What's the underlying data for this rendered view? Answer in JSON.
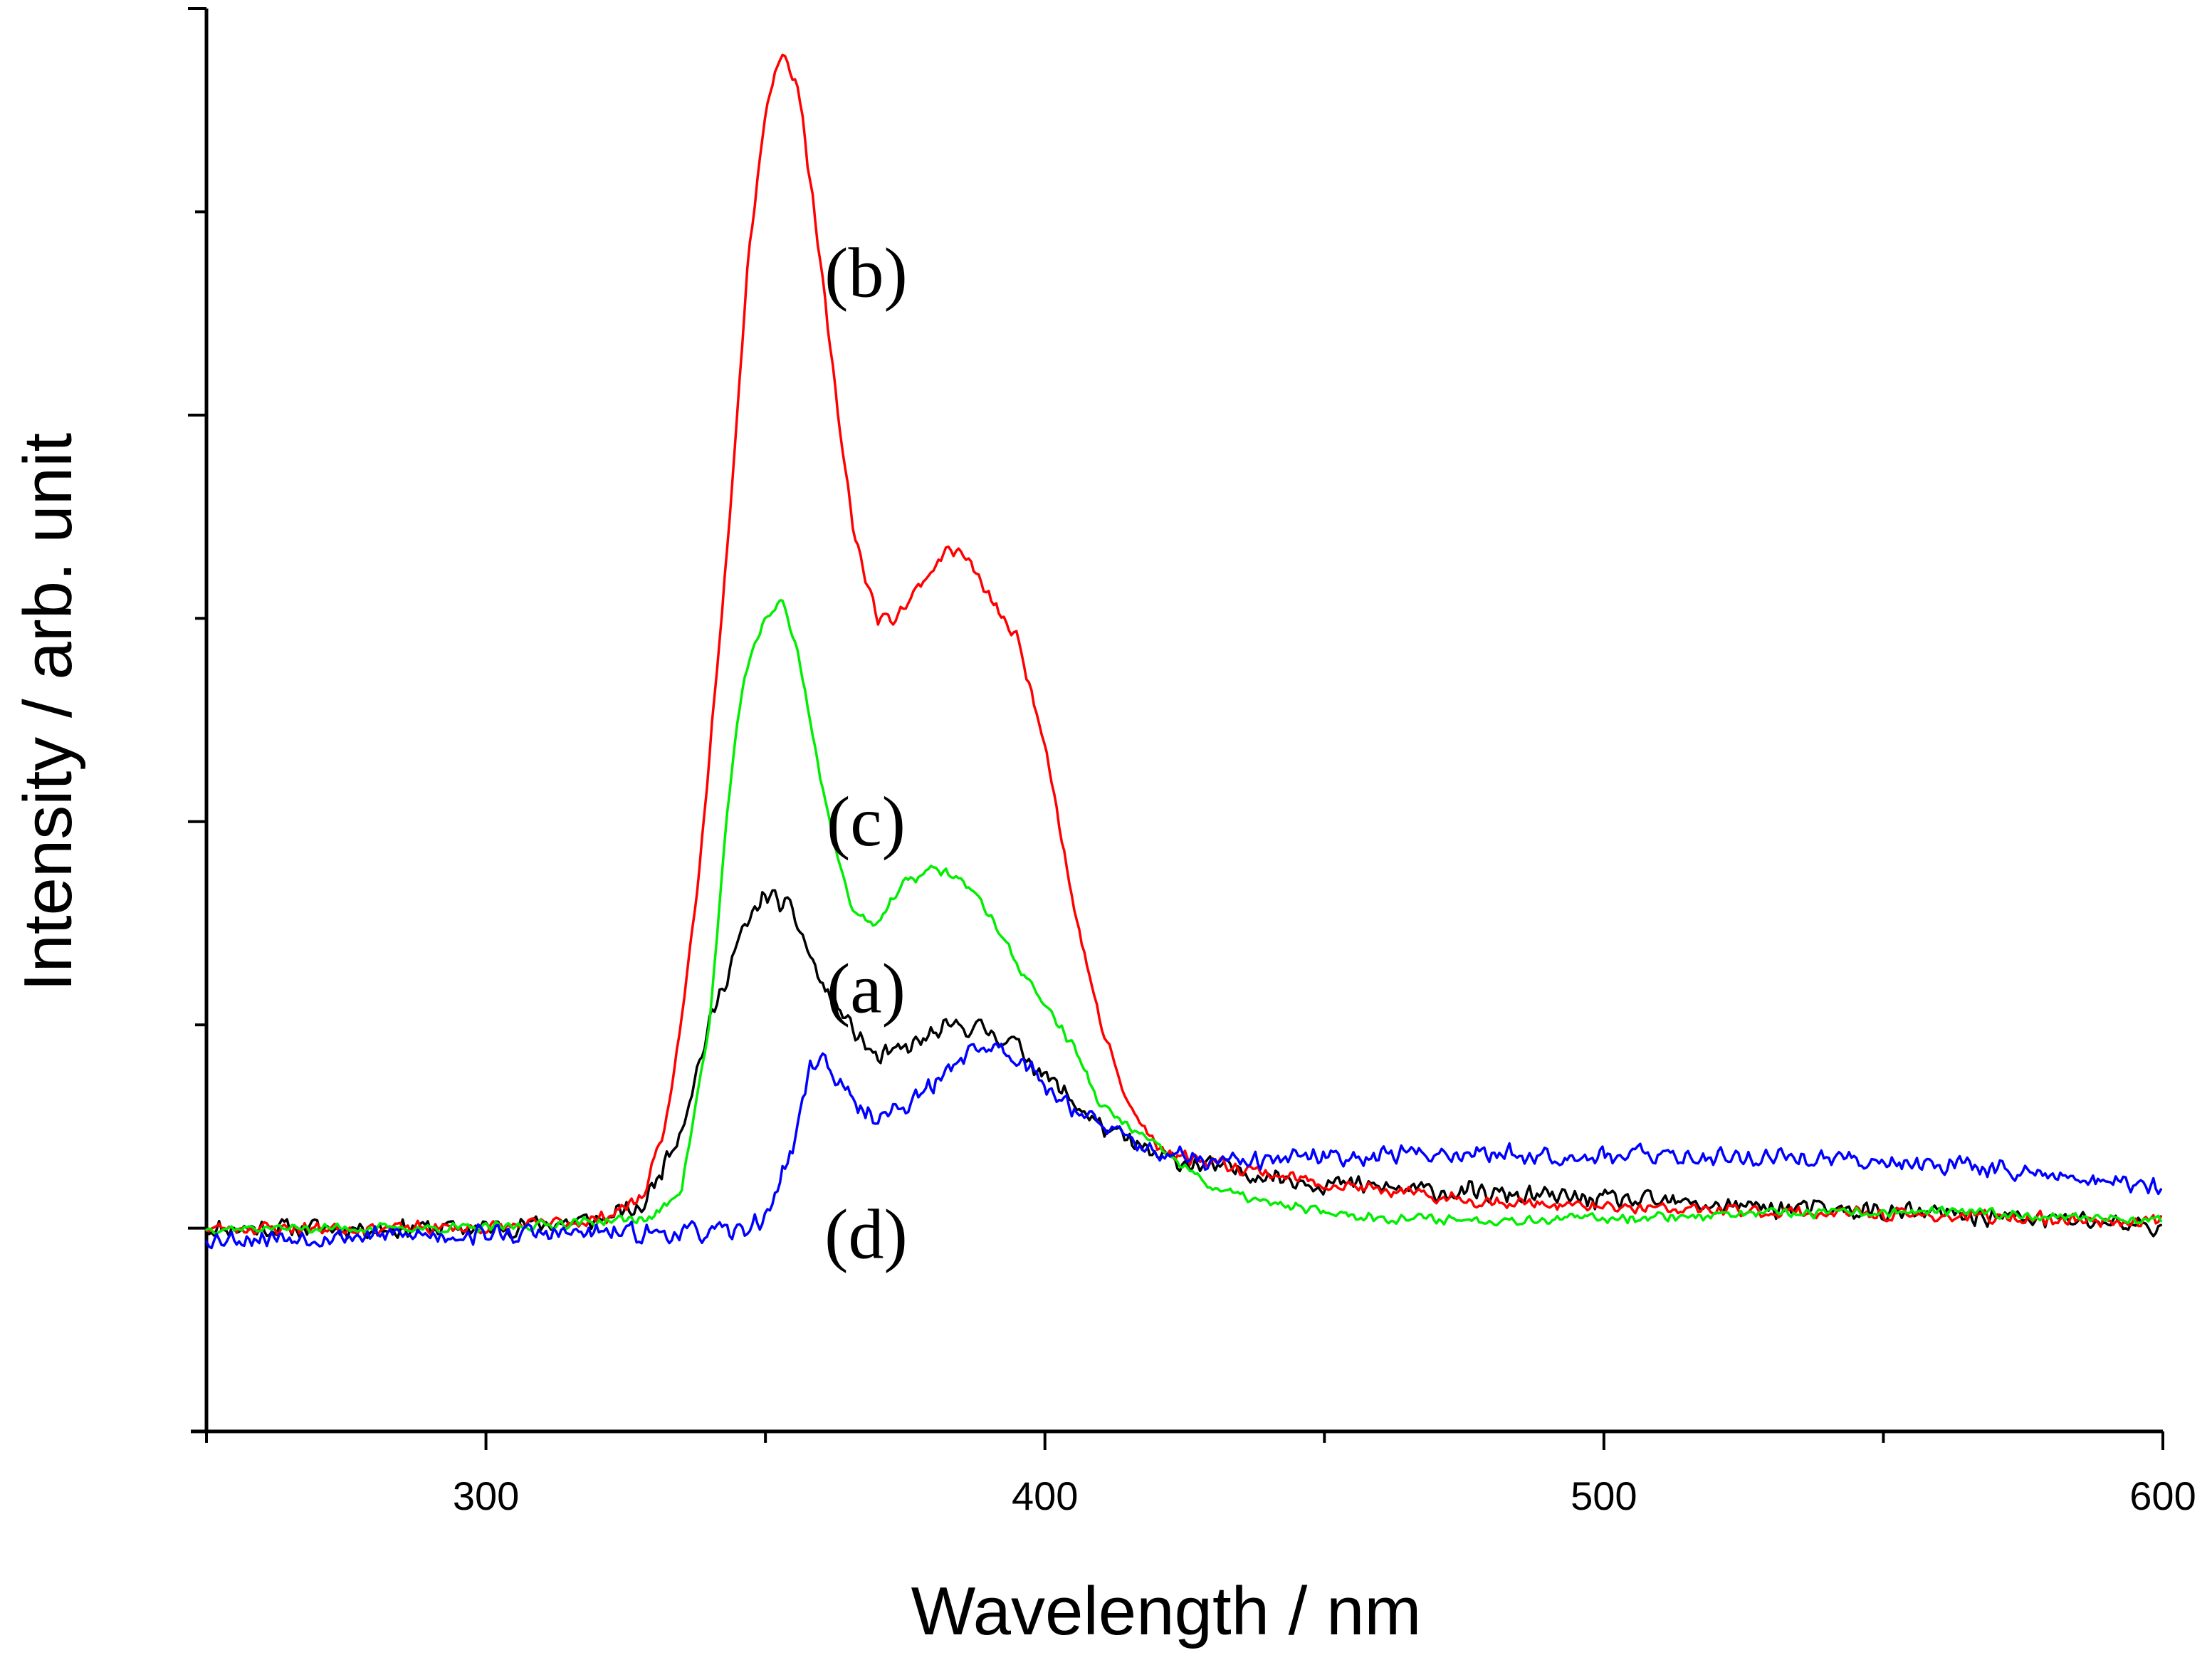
{
  "chart_data": {
    "type": "line",
    "title": "",
    "xlabel": "Wavelength  / nm",
    "ylabel": "Intensity / arb. unit",
    "xlim": [
      250,
      600
    ],
    "ylim": [
      -0.1,
      0.6
    ],
    "x_ticks": [
      300,
      400,
      500,
      600
    ],
    "x_tick_labels": [
      "300",
      "400",
      "500",
      "600"
    ],
    "y_major_ticks": [
      0,
      0.2,
      0.4,
      0.6
    ],
    "y_minor_ticks": [
      -0.1,
      0.1,
      0.3,
      0.5
    ],
    "y_tick_labels_shown": false,
    "grid": false,
    "series": [
      {
        "name": "(a)",
        "color": "#000000",
        "noise": 0.006,
        "seed": 11,
        "x": [
          250,
          300,
          320,
          328,
          335,
          340,
          345,
          350,
          355,
          360,
          365,
          370,
          375,
          380,
          385,
          390,
          395,
          400,
          410,
          420,
          430,
          440,
          450,
          470,
          500,
          530,
          560,
          590,
          600
        ],
        "values": [
          0.0,
          0.0,
          0.004,
          0.01,
          0.05,
          0.1,
          0.14,
          0.165,
          0.155,
          0.12,
          0.1,
          0.083,
          0.088,
          0.095,
          0.1,
          0.097,
          0.09,
          0.075,
          0.05,
          0.035,
          0.03,
          0.026,
          0.022,
          0.018,
          0.014,
          0.01,
          0.007,
          0.003,
          0.0
        ]
      },
      {
        "name": "(b)",
        "color": "#ff0000",
        "noise": 0.004,
        "seed": 23,
        "x": [
          250,
          300,
          320,
          328,
          333,
          338,
          343,
          347,
          350,
          353,
          356,
          360,
          363,
          366,
          370,
          373,
          376,
          380,
          383,
          386,
          390,
          395,
          400,
          405,
          410,
          415,
          420,
          425,
          430,
          440,
          450,
          470,
          500,
          530,
          560,
          600
        ],
        "values": [
          0.0,
          0.0,
          0.004,
          0.015,
          0.06,
          0.17,
          0.33,
          0.48,
          0.55,
          0.58,
          0.56,
          0.47,
          0.4,
          0.34,
          0.3,
          0.3,
          0.31,
          0.325,
          0.335,
          0.33,
          0.31,
          0.29,
          0.24,
          0.16,
          0.1,
          0.06,
          0.04,
          0.035,
          0.033,
          0.027,
          0.022,
          0.015,
          0.01,
          0.008,
          0.006,
          0.003
        ]
      },
      {
        "name": "(c)",
        "color": "#00ee00",
        "noise": 0.003,
        "seed": 37,
        "x": [
          250,
          300,
          330,
          335,
          340,
          343,
          346,
          350,
          353,
          356,
          360,
          363,
          366,
          370,
          375,
          380,
          385,
          390,
          395,
          400,
          405,
          410,
          420,
          430,
          440,
          450,
          460,
          480,
          500,
          530,
          560,
          600
        ],
        "values": [
          0.0,
          0.0,
          0.005,
          0.02,
          0.1,
          0.2,
          0.27,
          0.3,
          0.31,
          0.28,
          0.22,
          0.18,
          0.155,
          0.15,
          0.17,
          0.177,
          0.172,
          0.155,
          0.13,
          0.11,
          0.09,
          0.06,
          0.04,
          0.02,
          0.012,
          0.008,
          0.005,
          0.004,
          0.005,
          0.007,
          0.008,
          0.004
        ]
      },
      {
        "name": "(d)",
        "color": "#0000ff",
        "noise": 0.006,
        "seed": 53,
        "x": [
          250,
          300,
          345,
          350,
          355,
          358,
          360,
          363,
          366,
          370,
          375,
          380,
          385,
          390,
          395,
          400,
          410,
          420,
          430,
          440,
          450,
          470,
          500,
          530,
          560,
          600
        ],
        "values": [
          -0.005,
          -0.003,
          -0.002,
          0.005,
          0.04,
          0.08,
          0.085,
          0.072,
          0.06,
          0.055,
          0.06,
          0.07,
          0.085,
          0.09,
          0.085,
          0.07,
          0.05,
          0.037,
          0.032,
          0.033,
          0.035,
          0.037,
          0.036,
          0.035,
          0.032,
          0.02
        ]
      }
    ],
    "annotations": [
      {
        "text": "(b)",
        "x": 368,
        "y": 0.47
      },
      {
        "text": "(c)",
        "x": 368,
        "y": 0.2
      },
      {
        "text": "(a)",
        "x": 368,
        "y": 0.118
      },
      {
        "text": "(d)",
        "x": 368,
        "y": -0.003
      }
    ]
  }
}
